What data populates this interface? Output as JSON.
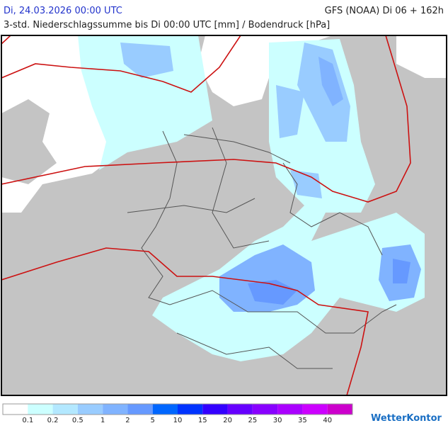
{
  "header": {
    "date": "Di, 24.03.2026 00:00 UTC",
    "model": "GFS (NOAA) Di 06 + 162h",
    "subtitle": "3-std. Niederschlagssumme bis Di 00:00 UTC [mm] / Bodendruck [hPa]"
  },
  "legend": {
    "colors": [
      "#ffffff",
      "#ccffff",
      "#b3e8ff",
      "#99ccff",
      "#80b3ff",
      "#6699ff",
      "#0066ff",
      "#0033ff",
      "#3300ff",
      "#6600ff",
      "#8800ff",
      "#aa00ff",
      "#cc00ff",
      "#cc00cc"
    ],
    "labels": [
      0.1,
      0.2,
      0.5,
      1,
      2,
      5,
      10,
      15,
      20,
      25,
      30,
      35,
      40
    ]
  },
  "logo": "WetterKontor"
}
